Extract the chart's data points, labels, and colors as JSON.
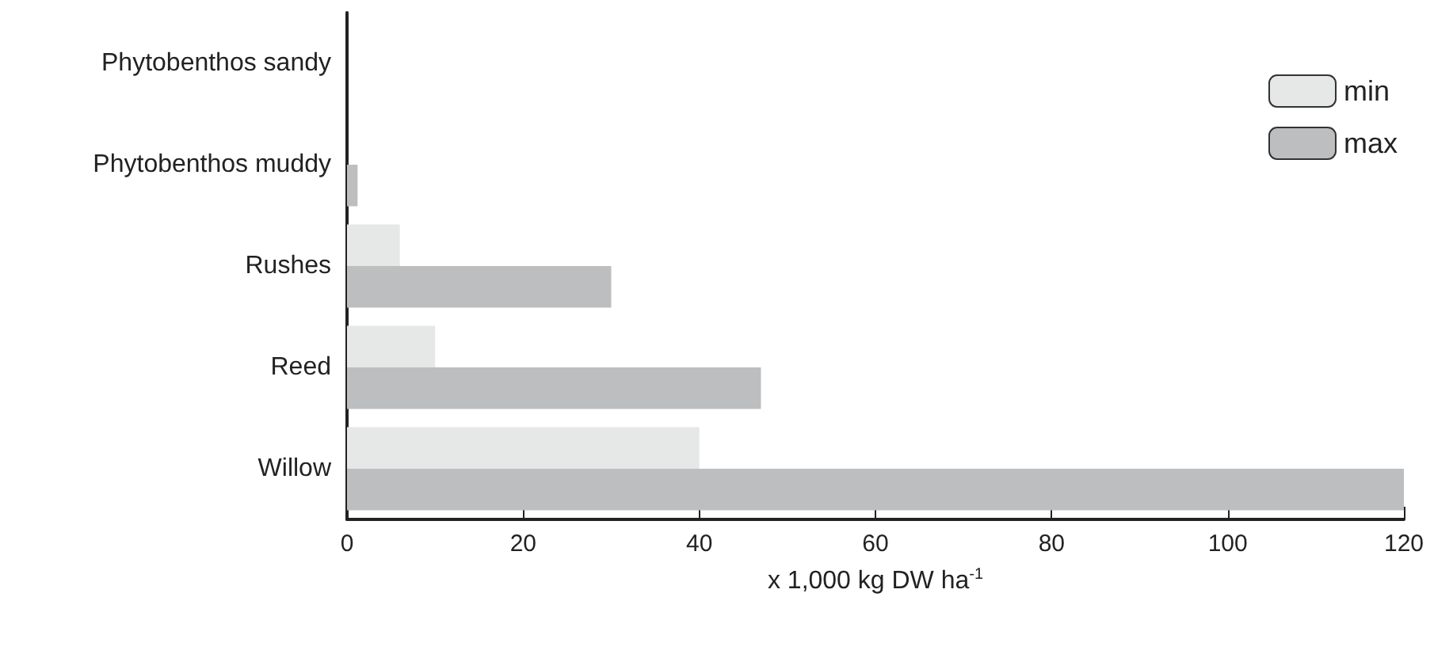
{
  "chart_data": {
    "type": "bar",
    "orientation": "horizontal",
    "categories": [
      "Phytobenthos sandy",
      "Phytobenthos muddy",
      "Rushes",
      "Reed",
      "Willow"
    ],
    "series": [
      {
        "name": "min",
        "color": "#e6e8e7",
        "values": [
          0,
          null,
          6,
          10,
          40
        ]
      },
      {
        "name": "max",
        "color": "#bdbebf",
        "values": [
          null,
          1.2,
          30,
          47,
          120
        ]
      }
    ],
    "xlim": [
      0,
      120
    ],
    "xticks": [
      0,
      20,
      40,
      60,
      80,
      100,
      120
    ],
    "xlabel": "x 1,000 kg DW ha$^{-1}$",
    "legend": "top right",
    "grid": false
  }
}
